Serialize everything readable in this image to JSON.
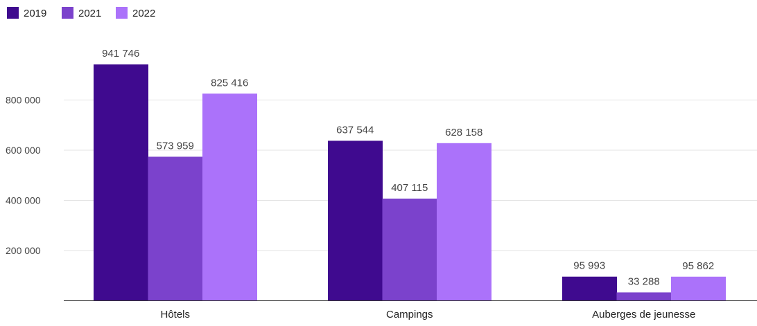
{
  "chart_data": {
    "type": "bar",
    "title": "",
    "xlabel": "",
    "ylabel": "",
    "categories": [
      "Hôtels",
      "Campings",
      "Auberges de jeunesse"
    ],
    "series": [
      {
        "name": "2019",
        "color": "#3f0a8f",
        "values": [
          941746,
          637544,
          95993
        ],
        "labels": [
          "941 746",
          "637 544",
          "95 993"
        ]
      },
      {
        "name": "2021",
        "color": "#7b42cc",
        "values": [
          573959,
          407115,
          33288
        ],
        "labels": [
          "573 959",
          "407 115",
          "33 288"
        ]
      },
      {
        "name": "2022",
        "color": "#ab72fa",
        "values": [
          825416,
          628158,
          95862
        ],
        "labels": [
          "825 416",
          "628 158",
          "95 862"
        ]
      }
    ],
    "ylim": [
      0,
      1000000
    ],
    "yticks": [
      200000,
      400000,
      600000,
      800000
    ],
    "ytick_labels": [
      "200 000",
      "400 000",
      "600 000",
      "800 000"
    ],
    "grid": true,
    "legend": "top-left"
  }
}
